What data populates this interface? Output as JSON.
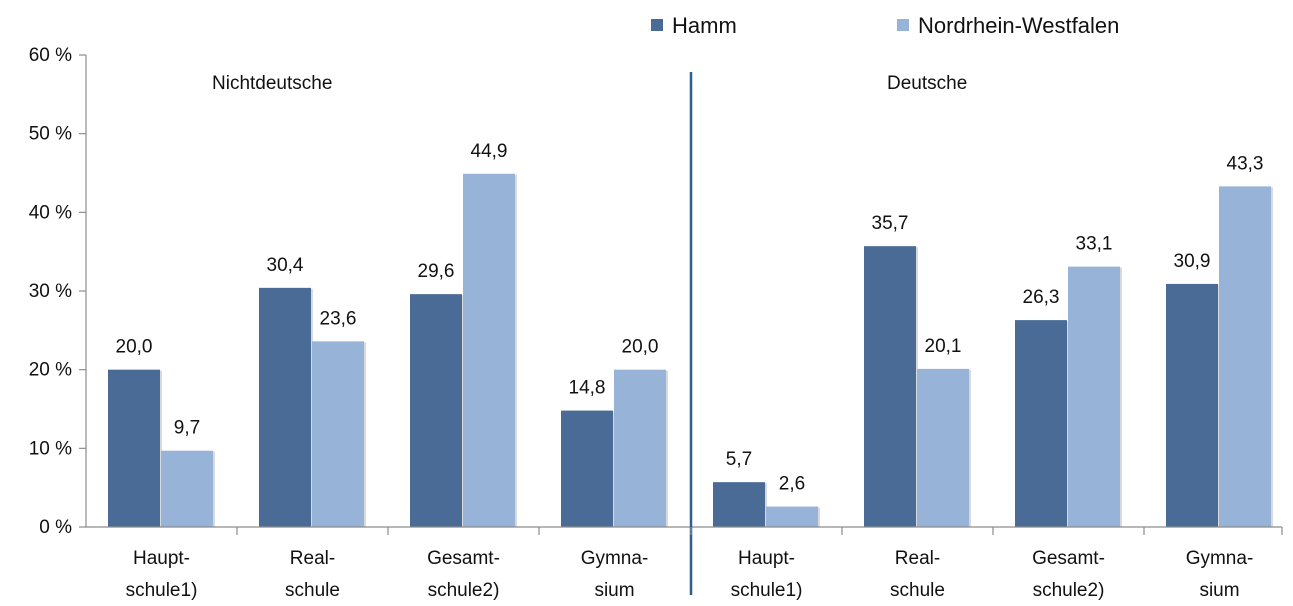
{
  "chart_data": {
    "type": "bar",
    "ylim": [
      0,
      60
    ],
    "yticks": [
      "0 %",
      "10 %",
      "20 %",
      "30 %",
      "40 %",
      "50 %",
      "60 %"
    ],
    "ytick_values": [
      0,
      10,
      20,
      30,
      40,
      50,
      60
    ],
    "grid": false,
    "legend_position": "top-right",
    "colors": {
      "Hamm": "#4a6b96",
      "Nordrhein-Westfalen": "#97b4d8",
      "divider": "#2f5f8f"
    },
    "series_names": [
      "Hamm",
      "Nordrhein-Westfalen"
    ],
    "groups": [
      {
        "label": "Nichtdeutsche",
        "categories": [
          [
            "Haupt-",
            "schule1)"
          ],
          [
            "Real-",
            "schule"
          ],
          [
            "Gesamt-",
            "schule2)"
          ],
          [
            "Gymna-",
            "sium"
          ]
        ],
        "series": [
          {
            "name": "Hamm",
            "values": [
              20.0,
              30.4,
              29.6,
              14.8
            ],
            "labels": [
              "20,0",
              "30,4",
              "29,6",
              "14,8"
            ]
          },
          {
            "name": "Nordrhein-Westfalen",
            "values": [
              9.7,
              23.6,
              44.9,
              20.0
            ],
            "labels": [
              "9,7",
              "23,6",
              "44,9",
              "20,0"
            ]
          }
        ]
      },
      {
        "label": "Deutsche",
        "categories": [
          [
            "Haupt-",
            "schule1)"
          ],
          [
            "Real-",
            "schule"
          ],
          [
            "Gesamt-",
            "schule2)"
          ],
          [
            "Gymna-",
            "sium"
          ]
        ],
        "series": [
          {
            "name": "Hamm",
            "values": [
              5.7,
              35.7,
              26.3,
              30.9
            ],
            "labels": [
              "5,7",
              "35,7",
              "26,3",
              "30,9"
            ]
          },
          {
            "name": "Nordrhein-Westfalen",
            "values": [
              2.6,
              20.1,
              33.1,
              43.3
            ],
            "labels": [
              "2,6",
              "20,1",
              "33,1",
              "43,3"
            ]
          }
        ]
      }
    ]
  }
}
